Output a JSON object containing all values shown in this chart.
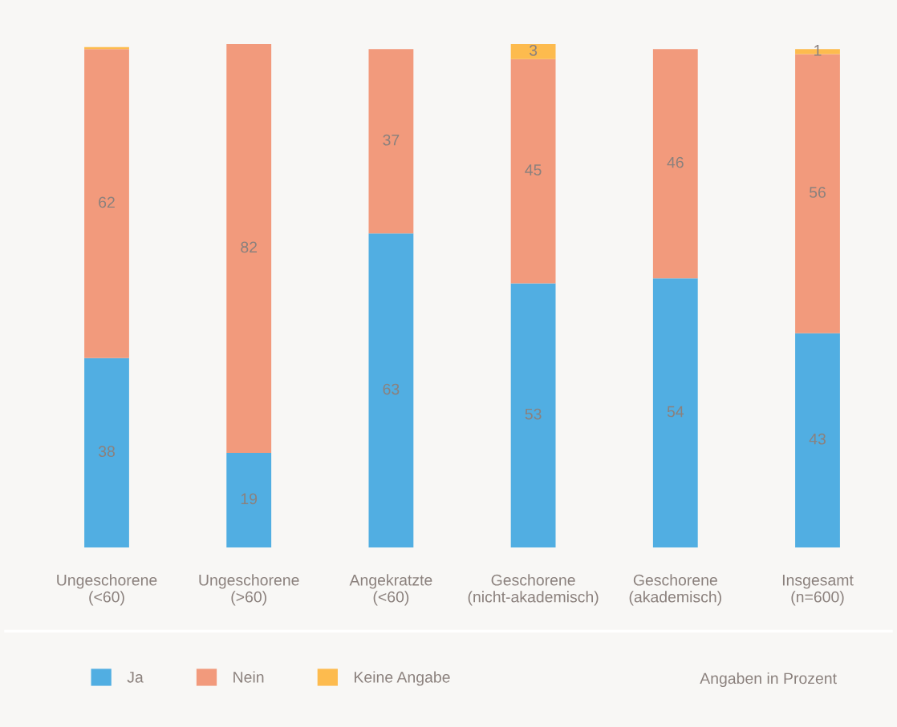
{
  "chart_data": {
    "type": "bar",
    "stacked": true,
    "legend": "bottom",
    "tick_labels": "x",
    "categories": [
      "Ungeschorene\n(<60)",
      "Ungeschorene\n(>60)",
      "Angekratzte\n(<60)",
      "Geschorene\n(nicht-akademisch)",
      "Geschorene\n(akademisch)",
      "Insgesamt\n(n=600)"
    ],
    "series": [
      {
        "name": "Ja",
        "color": "#51aee2",
        "values": [
          38,
          19,
          63,
          53,
          54,
          43
        ],
        "value_labels": [
          "38",
          "19",
          "63",
          "53",
          "54",
          "43"
        ]
      },
      {
        "name": "Nein",
        "color": "#f29a7c",
        "values": [
          62,
          82,
          37,
          45,
          46,
          56
        ],
        "value_labels": [
          "62",
          "82",
          "37",
          "45",
          "46",
          "56"
        ]
      },
      {
        "name": "Keine Angabe",
        "color": "#fdbb4e",
        "values": [
          0.4,
          null,
          null,
          3,
          null,
          1
        ],
        "value_labels": [
          null,
          null,
          null,
          "3",
          null,
          "1"
        ]
      }
    ],
    "annotations": [
      "Angaben in Prozent"
    ]
  }
}
